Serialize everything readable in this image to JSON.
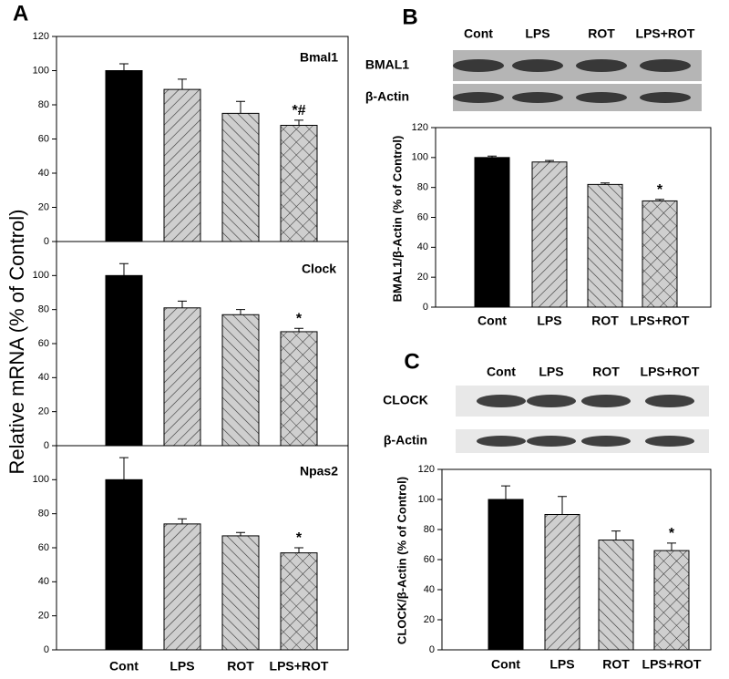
{
  "panel_a": {
    "label": "A",
    "ylabel": "Relative mRNA (% of Control)"
  },
  "blots": [
    {
      "label": "B",
      "columns": [
        "Cont",
        "LPS",
        "ROT",
        "LPS+ROT"
      ],
      "rows": [
        "BMAL1",
        "β-Actin"
      ]
    },
    {
      "label": "C",
      "columns": [
        "Cont",
        "LPS",
        "ROT",
        "LPS+ROT"
      ],
      "rows": [
        "CLOCK",
        "β-Actin"
      ]
    }
  ],
  "chart_data": [
    {
      "type": "bar",
      "title": "Bmal1",
      "categories": [
        null,
        null,
        null,
        null
      ],
      "values": [
        100,
        89,
        75,
        68
      ],
      "errors": [
        4,
        6,
        7,
        3
      ],
      "markers": [
        null,
        null,
        null,
        "*#"
      ],
      "fills": [
        "solid",
        "hatch-right",
        "hatch-left",
        "crosshatch"
      ],
      "ylim": [
        0,
        120
      ],
      "yticks": [
        0,
        20,
        40,
        60,
        80,
        100,
        120
      ],
      "grid": false
    },
    {
      "type": "bar",
      "title": "Clock",
      "categories": [
        null,
        null,
        null,
        null
      ],
      "values": [
        100,
        81,
        77,
        67
      ],
      "errors": [
        7,
        4,
        3,
        2
      ],
      "markers": [
        null,
        null,
        null,
        "*"
      ],
      "fills": [
        "solid",
        "hatch-right",
        "hatch-left",
        "crosshatch"
      ],
      "ylim": [
        0,
        120
      ],
      "yticks": [
        0,
        20,
        40,
        60,
        80,
        100
      ],
      "grid": false
    },
    {
      "type": "bar",
      "title": "Npas2",
      "categories": [
        "Cont",
        "LPS",
        "ROT",
        "LPS+ROT"
      ],
      "values": [
        100,
        74,
        67,
        57
      ],
      "errors": [
        13,
        3,
        2,
        3
      ],
      "markers": [
        null,
        null,
        null,
        "*"
      ],
      "fills": [
        "solid",
        "hatch-right",
        "hatch-left",
        "crosshatch"
      ],
      "ylim": [
        0,
        120
      ],
      "yticks": [
        0,
        20,
        40,
        60,
        80,
        100
      ],
      "grid": false
    },
    {
      "type": "bar",
      "ylabel": "BMAL1/β-Actin (% of Control)",
      "categories": [
        "Cont",
        "LPS",
        "ROT",
        "LPS+ROT"
      ],
      "values": [
        100,
        97,
        82,
        71
      ],
      "errors": [
        1,
        1,
        1,
        1
      ],
      "markers": [
        null,
        null,
        null,
        "*"
      ],
      "fills": [
        "solid",
        "hatch-right",
        "hatch-left",
        "crosshatch"
      ],
      "ylim": [
        0,
        120
      ],
      "yticks": [
        0,
        20,
        40,
        60,
        80,
        100,
        120
      ],
      "grid": false
    },
    {
      "type": "bar",
      "ylabel": "CLOCK/β-Actin (% of Control)",
      "categories": [
        "Cont",
        "LPS",
        "ROT",
        "LPS+ROT"
      ],
      "values": [
        100,
        90,
        73,
        66
      ],
      "errors": [
        9,
        12,
        6,
        5
      ],
      "markers": [
        null,
        null,
        null,
        "*"
      ],
      "fills": [
        "solid",
        "hatch-right",
        "hatch-left",
        "crosshatch"
      ],
      "ylim": [
        0,
        120
      ],
      "yticks": [
        0,
        20,
        40,
        60,
        80,
        100,
        120
      ],
      "grid": false
    }
  ]
}
